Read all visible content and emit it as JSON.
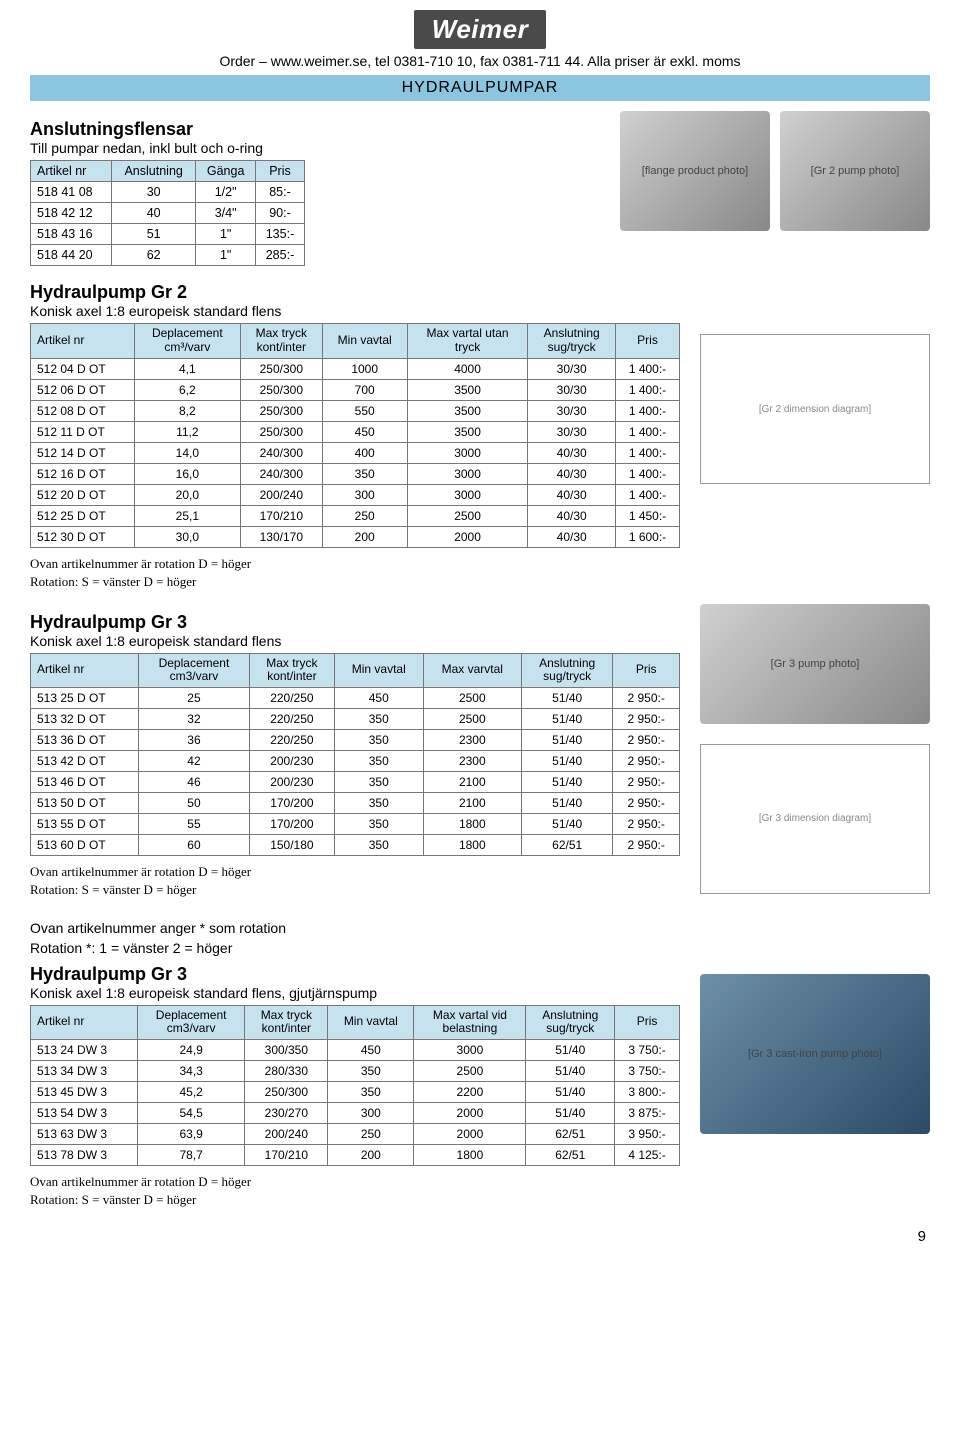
{
  "logo": "Weimer",
  "order_line": "Order – www.weimer.se, tel 0381-710 10, fax 0381-711 44. Alla priser är exkl. moms",
  "banner": "HYDRAULPUMPAR",
  "page_num": "9",
  "flensar": {
    "title": "Anslutningsflensar",
    "sub": "Till pumpar nedan, inkl bult och o-ring",
    "headers": [
      "Artikel nr",
      "Anslutning",
      "Gänga",
      "Pris"
    ],
    "rows": [
      [
        "518 41 08",
        "30",
        "1/2\"",
        "85:-"
      ],
      [
        "518 42 12",
        "40",
        "3/4\"",
        "90:-"
      ],
      [
        "518 43 16",
        "51",
        "1\"",
        "135:-"
      ],
      [
        "518 44 20",
        "62",
        "1\"",
        "285:-"
      ]
    ]
  },
  "gr2": {
    "title": "Hydraulpump Gr 2",
    "sub": "Konisk axel 1:8  europeisk standard flens",
    "headers": [
      "Artikel nr",
      "Deplacement cm³/varv",
      "Max tryck kont/inter",
      "Min vavtal",
      "Max vartal utan tryck",
      "Anslutning sug/tryck",
      "Pris"
    ],
    "rows": [
      [
        "512 04 D OT",
        "4,1",
        "250/300",
        "1000",
        "4000",
        "30/30",
        "1 400:-"
      ],
      [
        "512 06 D OT",
        "6,2",
        "250/300",
        "700",
        "3500",
        "30/30",
        "1 400:-"
      ],
      [
        "512 08 D OT",
        "8,2",
        "250/300",
        "550",
        "3500",
        "30/30",
        "1 400:-"
      ],
      [
        "512 11 D OT",
        "11,2",
        "250/300",
        "450",
        "3500",
        "30/30",
        "1 400:-"
      ],
      [
        "512 14 D OT",
        "14,0",
        "240/300",
        "400",
        "3000",
        "40/30",
        "1 400:-"
      ],
      [
        "512 16 D OT",
        "16,0",
        "240/300",
        "350",
        "3000",
        "40/30",
        "1 400:-"
      ],
      [
        "512 20 D OT",
        "20,0",
        "200/240",
        "300",
        "3000",
        "40/30",
        "1 400:-"
      ],
      [
        "512 25 D OT",
        "25,1",
        "170/210",
        "250",
        "2500",
        "40/30",
        "1 450:-"
      ],
      [
        "512 30 D OT",
        "30,0",
        "130/170",
        "200",
        "2000",
        "40/30",
        "1 600:-"
      ]
    ],
    "note1": "Ovan artikelnummer är rotation D = höger",
    "note2": "Rotation: S = vänster  D = höger"
  },
  "gr3a": {
    "title": "Hydraulpump Gr 3",
    "sub": "Konisk axel 1:8  europeisk standard flens",
    "headers": [
      "Artikel nr",
      "Deplacement cm3/varv",
      "Max tryck kont/inter",
      "Min vavtal",
      "Max varvtal",
      "Anslutning sug/tryck",
      "Pris"
    ],
    "rows": [
      [
        "513 25 D OT",
        "25",
        "220/250",
        "450",
        "2500",
        "51/40",
        "2 950:-"
      ],
      [
        "513 32 D OT",
        "32",
        "220/250",
        "350",
        "2500",
        "51/40",
        "2 950:-"
      ],
      [
        "513 36 D OT",
        "36",
        "220/250",
        "350",
        "2300",
        "51/40",
        "2 950:-"
      ],
      [
        "513 42 D OT",
        "42",
        "200/230",
        "350",
        "2300",
        "51/40",
        "2 950:-"
      ],
      [
        "513 46 D OT",
        "46",
        "200/230",
        "350",
        "2100",
        "51/40",
        "2 950:-"
      ],
      [
        "513 50 D OT",
        "50",
        "170/200",
        "350",
        "2100",
        "51/40",
        "2 950:-"
      ],
      [
        "513 55 D OT",
        "55",
        "170/200",
        "350",
        "1800",
        "51/40",
        "2 950:-"
      ],
      [
        "513 60 D OT",
        "60",
        "150/180",
        "350",
        "1800",
        "62/51",
        "2 950:-"
      ]
    ],
    "note1": "Ovan artikelnummer är rotation D = höger",
    "note2": "Rotation: S = vänster  D = höger"
  },
  "gr3b": {
    "pre1": "Ovan artikelnummer anger * som rotation",
    "pre2": "Rotation *: 1 = vänster  2 = höger",
    "title": "Hydraulpump Gr 3",
    "sub": "Konisk axel 1:8  europeisk standard flens, gjutjärnspump",
    "headers": [
      "Artikel nr",
      "Deplacement cm3/varv",
      "Max tryck kont/inter",
      "Min vavtal",
      "Max vartal vid belastning",
      "Anslutning sug/tryck",
      "Pris"
    ],
    "rows": [
      [
        "513 24 DW 3",
        "24,9",
        "300/350",
        "450",
        "3000",
        "51/40",
        "3 750:-"
      ],
      [
        "513 34 DW 3",
        "34,3",
        "280/330",
        "350",
        "2500",
        "51/40",
        "3 750:-"
      ],
      [
        "513 45 DW 3",
        "45,2",
        "250/300",
        "350",
        "2200",
        "51/40",
        "3 800:-"
      ],
      [
        "513 54 DW 3",
        "54,5",
        "230/270",
        "300",
        "2000",
        "51/40",
        "3 875:-"
      ],
      [
        "513 63 DW 3",
        "63,9",
        "200/240",
        "250",
        "2000",
        "62/51",
        "3 950:-"
      ],
      [
        "513 78 DW 3",
        "78,7",
        "170/210",
        "200",
        "1800",
        "62/51",
        "4 125:-"
      ]
    ],
    "note1": "Ovan artikelnummer är rotation D = höger",
    "note2": "Rotation: S = vänster  D = höger"
  },
  "colors": {
    "header_bg": "#c7e2ef",
    "banner_bg": "#8cc5e0",
    "border": "#777777",
    "logo_bg": "#4a4a4a"
  },
  "image_placeholders": {
    "flange_product": "[flange product photo]",
    "gr2_product": "[Gr 2 pump photo]",
    "gr2_diagram": "[Gr 2 dimension diagram]",
    "gr3_product": "[Gr 3 pump photo]",
    "gr3_diagram": "[Gr 3 dimension diagram]",
    "gr3_cast_product": "[Gr 3 cast-iron pump photo]"
  }
}
